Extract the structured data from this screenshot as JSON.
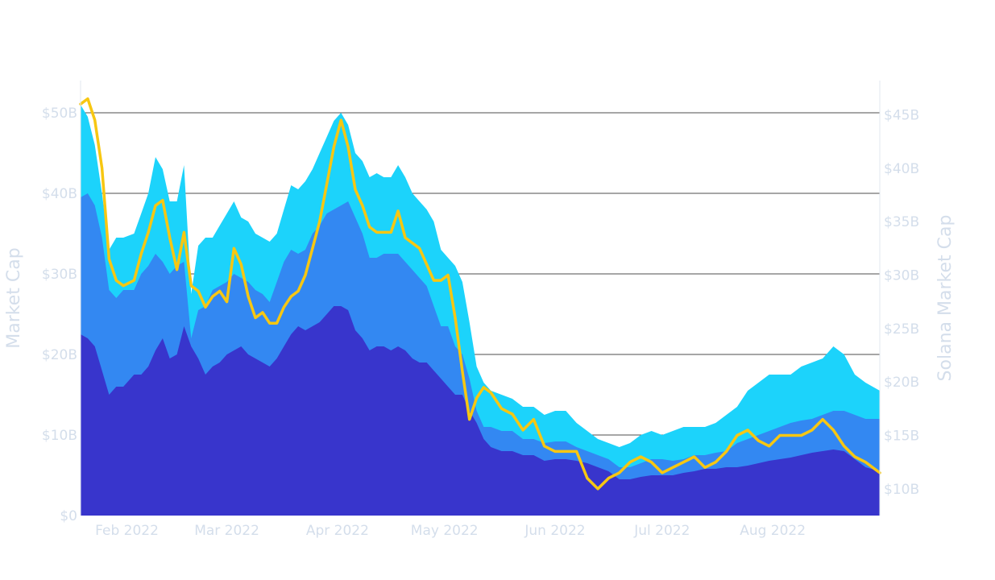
{
  "colors": {
    "text": "#D4DEEB",
    "grid": "#4D4D4D",
    "axis_line": "#E1E7EF",
    "band_dark": "#3835CC",
    "band_mid": "#3388F2",
    "band_light": "#1CD3FB",
    "solana_line": "#F7C712"
  },
  "chart_data": {
    "type": "area",
    "title": "",
    "left_axis": {
      "title": "Market Cap",
      "ylim": [
        0,
        54
      ],
      "unit": "billions USD",
      "ticks": [
        0,
        10,
        20,
        30,
        40,
        50
      ],
      "tick_labels": [
        "$0",
        "$10B",
        "$20B",
        "$30B",
        "$40B",
        "$50B"
      ]
    },
    "right_axis": {
      "title": "Solana Market Cap",
      "ylim": [
        7.5,
        48.2
      ],
      "unit": "billions USD",
      "ticks": [
        10,
        15,
        20,
        25,
        30,
        35,
        40,
        45
      ],
      "tick_labels": [
        "$10B",
        "$15B",
        "$20B",
        "$25B",
        "$30B",
        "$35B",
        "$40B",
        "$45B"
      ]
    },
    "x_axis": {
      "range": [
        "2022-01-19",
        "2022-08-31"
      ],
      "ticks": [
        "2022-02-01",
        "2022-03-01",
        "2022-04-01",
        "2022-05-01",
        "2022-06-01",
        "2022-07-01",
        "2022-08-01"
      ],
      "tick_labels": [
        "Feb 2022",
        "Mar 2022",
        "Apr 2022",
        "May 2022",
        "Jun 2022",
        "Jul 2022",
        "Aug 2022"
      ]
    },
    "grid": "horizontal",
    "x": [
      "2022-01-19",
      "2022-01-21",
      "2022-01-23",
      "2022-01-25",
      "2022-01-27",
      "2022-01-29",
      "2022-01-31",
      "2022-02-03",
      "2022-02-05",
      "2022-02-07",
      "2022-02-09",
      "2022-02-11",
      "2022-02-13",
      "2022-02-15",
      "2022-02-17",
      "2022-02-19",
      "2022-02-21",
      "2022-02-23",
      "2022-02-25",
      "2022-02-27",
      "2022-03-01",
      "2022-03-03",
      "2022-03-05",
      "2022-03-07",
      "2022-03-09",
      "2022-03-11",
      "2022-03-13",
      "2022-03-15",
      "2022-03-17",
      "2022-03-19",
      "2022-03-21",
      "2022-03-23",
      "2022-03-25",
      "2022-03-27",
      "2022-03-29",
      "2022-03-31",
      "2022-04-02",
      "2022-04-04",
      "2022-04-06",
      "2022-04-08",
      "2022-04-10",
      "2022-04-12",
      "2022-04-14",
      "2022-04-16",
      "2022-04-18",
      "2022-04-20",
      "2022-04-22",
      "2022-04-24",
      "2022-04-26",
      "2022-04-28",
      "2022-04-30",
      "2022-05-02",
      "2022-05-04",
      "2022-05-06",
      "2022-05-08",
      "2022-05-10",
      "2022-05-12",
      "2022-05-14",
      "2022-05-17",
      "2022-05-20",
      "2022-05-23",
      "2022-05-26",
      "2022-05-29",
      "2022-06-01",
      "2022-06-04",
      "2022-06-07",
      "2022-06-10",
      "2022-06-13",
      "2022-06-16",
      "2022-06-19",
      "2022-06-22",
      "2022-06-25",
      "2022-06-28",
      "2022-07-01",
      "2022-07-04",
      "2022-07-07",
      "2022-07-10",
      "2022-07-13",
      "2022-07-16",
      "2022-07-19",
      "2022-07-22",
      "2022-07-25",
      "2022-07-28",
      "2022-07-31",
      "2022-08-03",
      "2022-08-06",
      "2022-08-09",
      "2022-08-12",
      "2022-08-15",
      "2022-08-18",
      "2022-08-21",
      "2022-08-24",
      "2022-08-27",
      "2022-08-31"
    ],
    "series": [
      {
        "key": "band_dark",
        "axis": "left",
        "values": [
          22.5,
          22.0,
          21.0,
          18.0,
          15.0,
          16.0,
          16.0,
          17.5,
          17.5,
          18.5,
          20.5,
          22.0,
          19.5,
          20.0,
          23.5,
          21.0,
          19.5,
          17.5,
          18.5,
          19.0,
          20.0,
          20.5,
          21.0,
          20.0,
          19.5,
          19.0,
          18.5,
          19.5,
          21.0,
          22.5,
          23.5,
          23.0,
          23.5,
          24.0,
          25.0,
          26.0,
          26.0,
          25.5,
          23.0,
          22.0,
          20.5,
          21.0,
          21.0,
          20.5,
          21.0,
          20.5,
          19.5,
          19.0,
          19.0,
          18.0,
          17.0,
          16.0,
          15.0,
          15.0,
          13.0,
          11.5,
          9.5,
          8.5,
          8.0,
          8.0,
          7.5,
          7.5,
          6.8,
          7.0,
          7.0,
          6.8,
          6.5,
          6.0,
          5.5,
          4.5,
          4.5,
          4.8,
          5.0,
          5.0,
          5.0,
          5.3,
          5.5,
          5.8,
          5.8,
          6.0,
          6.0,
          6.2,
          6.5,
          6.8,
          7.0,
          7.2,
          7.5,
          7.8,
          8.0,
          8.2,
          8.0,
          7.0,
          6.0,
          5.5
        ]
      },
      {
        "key": "band_mid",
        "axis": "left",
        "values": [
          39.5,
          40.0,
          38.5,
          34.5,
          28.0,
          27.0,
          28.0,
          28.0,
          30.0,
          31.0,
          32.5,
          31.5,
          30.0,
          31.0,
          31.5,
          22.0,
          25.5,
          26.0,
          28.0,
          28.5,
          29.0,
          30.0,
          29.5,
          29.0,
          28.0,
          27.5,
          26.5,
          29.0,
          31.5,
          33.0,
          32.5,
          33.0,
          35.0,
          36.0,
          37.5,
          38.0,
          38.5,
          39.0,
          37.0,
          35.0,
          32.0,
          32.0,
          32.5,
          32.5,
          32.5,
          31.5,
          30.5,
          29.5,
          28.5,
          26.0,
          23.5,
          23.5,
          21.0,
          20.0,
          17.0,
          13.0,
          11.0,
          11.0,
          10.5,
          10.5,
          9.5,
          9.5,
          9.0,
          9.2,
          9.2,
          8.5,
          8.0,
          7.5,
          7.0,
          6.0,
          6.0,
          6.5,
          7.0,
          7.0,
          6.8,
          7.0,
          7.5,
          7.5,
          7.8,
          8.0,
          9.0,
          9.5,
          10.0,
          10.5,
          11.0,
          11.5,
          11.8,
          12.0,
          12.5,
          13.0,
          13.0,
          12.5,
          12.0,
          12.0
        ]
      },
      {
        "key": "band_light",
        "axis": "left",
        "values": [
          51.0,
          49.5,
          46.0,
          40.0,
          33.0,
          34.5,
          34.5,
          35.0,
          37.5,
          40.0,
          44.5,
          43.0,
          39.0,
          39.0,
          43.5,
          27.5,
          33.5,
          34.5,
          34.5,
          36.0,
          37.5,
          39.0,
          37.0,
          36.5,
          35.0,
          34.5,
          34.0,
          35.0,
          38.0,
          41.0,
          40.5,
          41.5,
          43.0,
          45.0,
          47.0,
          49.0,
          50.0,
          48.5,
          45.0,
          44.0,
          42.0,
          42.5,
          42.0,
          42.0,
          43.5,
          42.0,
          40.0,
          39.0,
          38.0,
          36.5,
          33.0,
          32.0,
          31.0,
          29.0,
          24.0,
          18.5,
          16.5,
          15.5,
          15.0,
          14.5,
          13.5,
          13.5,
          12.5,
          13.0,
          13.0,
          11.5,
          10.5,
          9.5,
          9.0,
          8.5,
          9.0,
          10.0,
          10.5,
          10.0,
          10.5,
          11.0,
          11.0,
          11.0,
          11.5,
          12.5,
          13.5,
          15.5,
          16.5,
          17.5,
          17.5,
          17.5,
          18.5,
          19.0,
          19.5,
          21.0,
          20.0,
          17.5,
          16.5,
          15.5
        ]
      },
      {
        "key": "solana_line",
        "name": "Solana Market Cap",
        "axis": "right",
        "values": [
          46.0,
          46.5,
          44.5,
          40.0,
          31.5,
          29.5,
          29.0,
          29.5,
          32.0,
          34.0,
          36.5,
          37.0,
          33.5,
          30.5,
          34.0,
          29.0,
          28.5,
          27.0,
          28.0,
          28.5,
          27.5,
          32.5,
          31.0,
          28.0,
          26.0,
          26.5,
          25.5,
          25.5,
          27.0,
          28.0,
          28.5,
          30.0,
          32.5,
          35.0,
          38.5,
          42.0,
          44.5,
          42.0,
          38.0,
          36.5,
          34.5,
          34.0,
          34.0,
          34.0,
          36.0,
          33.5,
          33.0,
          32.5,
          31.0,
          29.5,
          29.5,
          30.0,
          26.0,
          21.0,
          16.5,
          18.5,
          19.5,
          19.0,
          17.5,
          17.0,
          15.5,
          16.5,
          14.0,
          13.5,
          13.5,
          13.5,
          11.0,
          10.0,
          11.0,
          11.5,
          12.5,
          13.0,
          12.5,
          11.5,
          12.0,
          12.5,
          13.0,
          12.0,
          12.5,
          13.5,
          15.0,
          15.5,
          14.5,
          14.0,
          15.0,
          15.0,
          15.0,
          15.5,
          16.5,
          15.5,
          14.0,
          13.0,
          12.5,
          11.5
        ]
      }
    ]
  }
}
